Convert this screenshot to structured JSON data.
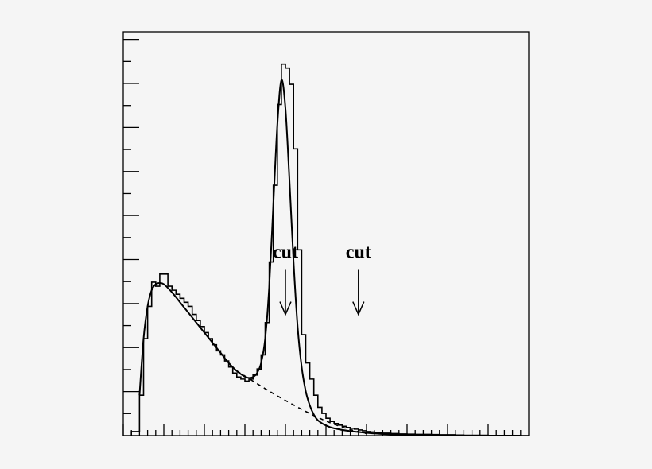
{
  "chart_data": {
    "type": "line",
    "title": "",
    "xlabel": "",
    "ylabel": "",
    "xlim": [
      0,
      100
    ],
    "ylim": [
      0,
      100
    ],
    "x_major_ticks": [
      0,
      10,
      20,
      30,
      40,
      50,
      60,
      70,
      80,
      90
    ],
    "x_minor_ticks": [
      2,
      4,
      6,
      8,
      12,
      14,
      16,
      18,
      22,
      24,
      26,
      28,
      32,
      34,
      36,
      38,
      42,
      44,
      46,
      48,
      52,
      54,
      56,
      58,
      62,
      64,
      66,
      68,
      72,
      74,
      76,
      78,
      82,
      84,
      86,
      88,
      92,
      94,
      96,
      98
    ],
    "y_major_ticks": [
      0,
      10.9,
      21.8,
      32.7,
      43.6,
      54.5,
      65.4,
      76.3,
      87.2,
      98.1
    ],
    "y_minor_ticks": [
      5.45,
      16.35,
      27.25,
      38.15,
      49.05,
      59.95,
      70.85,
      81.75,
      92.65
    ],
    "grid": false,
    "legend": "none",
    "colors": {
      "axes": "#000000",
      "curves": "#000000",
      "background": "#f5f5f5"
    },
    "series": [
      {
        "style": "histogram",
        "x": [
          2,
          4,
          5,
          6,
          7,
          8,
          9,
          10,
          11,
          12,
          13,
          14,
          15,
          16,
          17,
          18,
          19,
          20,
          21,
          22,
          23,
          24,
          25,
          26,
          27,
          28,
          29,
          30,
          31,
          32,
          33,
          34,
          35,
          36,
          37,
          38,
          39,
          40,
          41,
          42,
          43,
          44,
          45,
          46,
          47,
          48,
          49,
          50,
          51,
          52,
          53,
          54,
          55,
          56,
          57,
          58,
          59,
          60,
          61,
          62,
          63,
          64,
          66,
          68,
          70,
          72,
          74,
          76,
          78,
          80,
          82,
          84,
          86,
          88,
          90,
          92,
          94,
          96,
          98
        ],
        "values": [
          1,
          10,
          24,
          32,
          38,
          37,
          40,
          40,
          37,
          36,
          35,
          34,
          33,
          32,
          30,
          28.5,
          27,
          25.5,
          24,
          22.5,
          21,
          20,
          18.5,
          17,
          15.5,
          14.5,
          14,
          13.5,
          14,
          15,
          16.5,
          20,
          28,
          43,
          62,
          82,
          92,
          91,
          87,
          71,
          46,
          25,
          18,
          14,
          10,
          7,
          5.5,
          4.3,
          3.5,
          3,
          2.6,
          2.3,
          2,
          1.8,
          1.6,
          1.4,
          1.2,
          1,
          0.9,
          0.8,
          0.7,
          0.6,
          0.5,
          0.4,
          0.35,
          0.3,
          0.3,
          0.25,
          0.2,
          0.2,
          0.15,
          0.1,
          0.1,
          0.1,
          0.05,
          0.05,
          0.05,
          0.05,
          0
        ]
      },
      {
        "style": "solid",
        "x": [
          4,
          5,
          6,
          7,
          8,
          9,
          10,
          12,
          14,
          16,
          18,
          20,
          22,
          24,
          26,
          28,
          30,
          31,
          32,
          33,
          34,
          35,
          36,
          37,
          38,
          39,
          40,
          41,
          42,
          43,
          44,
          45,
          46,
          47,
          48,
          50,
          52,
          56,
          60,
          65,
          70,
          75,
          80
        ],
        "values": [
          10,
          24,
          32,
          36,
          37.5,
          37.8,
          37.5,
          35.5,
          33,
          30.5,
          28,
          25.5,
          23,
          20.5,
          18,
          16,
          14.6,
          14.3,
          14.5,
          15.5,
          18,
          24,
          37,
          57,
          77,
          88,
          81,
          63,
          43,
          27,
          17,
          11,
          7.5,
          5.2,
          3.8,
          2.5,
          1.8,
          1.1,
          0.7,
          0.35,
          0.18,
          0.08,
          0
        ]
      },
      {
        "style": "dashed",
        "x": [
          28,
          32,
          36,
          40,
          44,
          48,
          52,
          56,
          60
        ],
        "values": [
          16,
          13.5,
          11,
          8.7,
          6.5,
          4.5,
          2.8,
          1.5,
          0.5
        ]
      }
    ],
    "annotations": [
      {
        "text": "cut",
        "x": 40,
        "y": 44,
        "arrow_to_y": 30
      },
      {
        "text": "cut",
        "x": 58,
        "y": 44,
        "arrow_to_y": 30
      }
    ]
  }
}
